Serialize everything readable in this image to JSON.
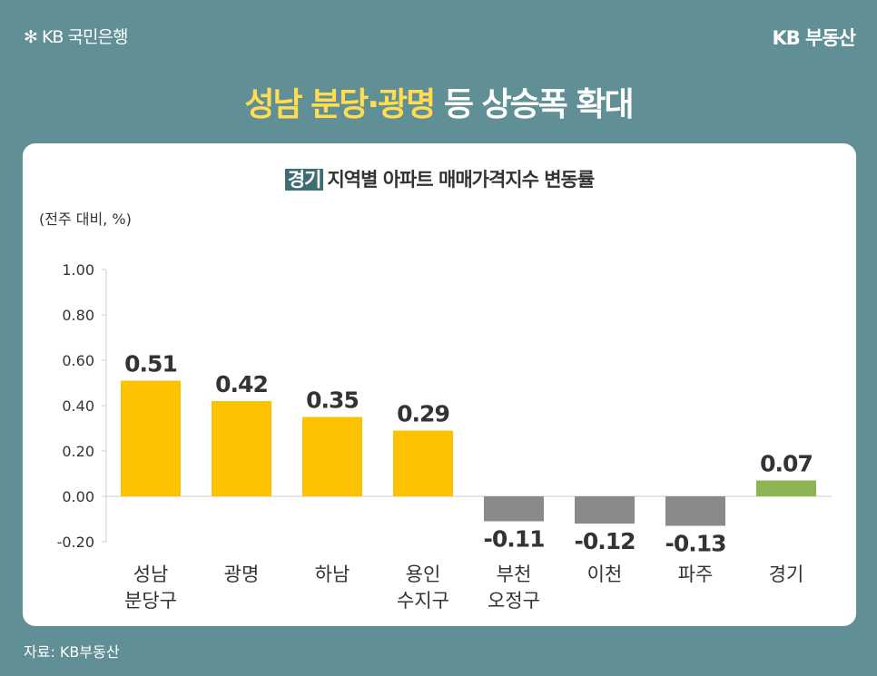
{
  "header": {
    "logo_left": "KB 국민은행",
    "logo_right": "KB 부동산"
  },
  "title": {
    "highlight": "성남 분당·광명",
    "rest": " 등 상승폭 확대"
  },
  "source": "자료: KB부동산",
  "chart_data": {
    "type": "bar",
    "title_tag": "경기",
    "title": "지역별 아파트 매매가격지수 변동률",
    "unit": "(전주 대비, %)",
    "categories": [
      [
        "성남",
        "분당구"
      ],
      [
        "광명"
      ],
      [
        "하남"
      ],
      [
        "용인",
        "수지구"
      ],
      [
        "부천",
        "오정구"
      ],
      [
        "이천"
      ],
      [
        "파주"
      ],
      [
        "경기"
      ]
    ],
    "values": [
      0.51,
      0.42,
      0.35,
      0.29,
      -0.11,
      -0.12,
      -0.13,
      0.07
    ],
    "data_labels": [
      "0.51",
      "0.42",
      "0.35",
      "0.29",
      "-0.11",
      "-0.12",
      "-0.13",
      "0.07"
    ],
    "colors": [
      "#fdc300",
      "#fdc300",
      "#fdc300",
      "#fdc300",
      "#8a8a8a",
      "#8a8a8a",
      "#8a8a8a",
      "#8cb451"
    ],
    "ylim": [
      -0.2,
      1.0
    ],
    "yticks": [
      "1.00",
      "0.80",
      "0.60",
      "0.40",
      "0.20",
      "0.00",
      "-0.20"
    ],
    "grid": false
  }
}
